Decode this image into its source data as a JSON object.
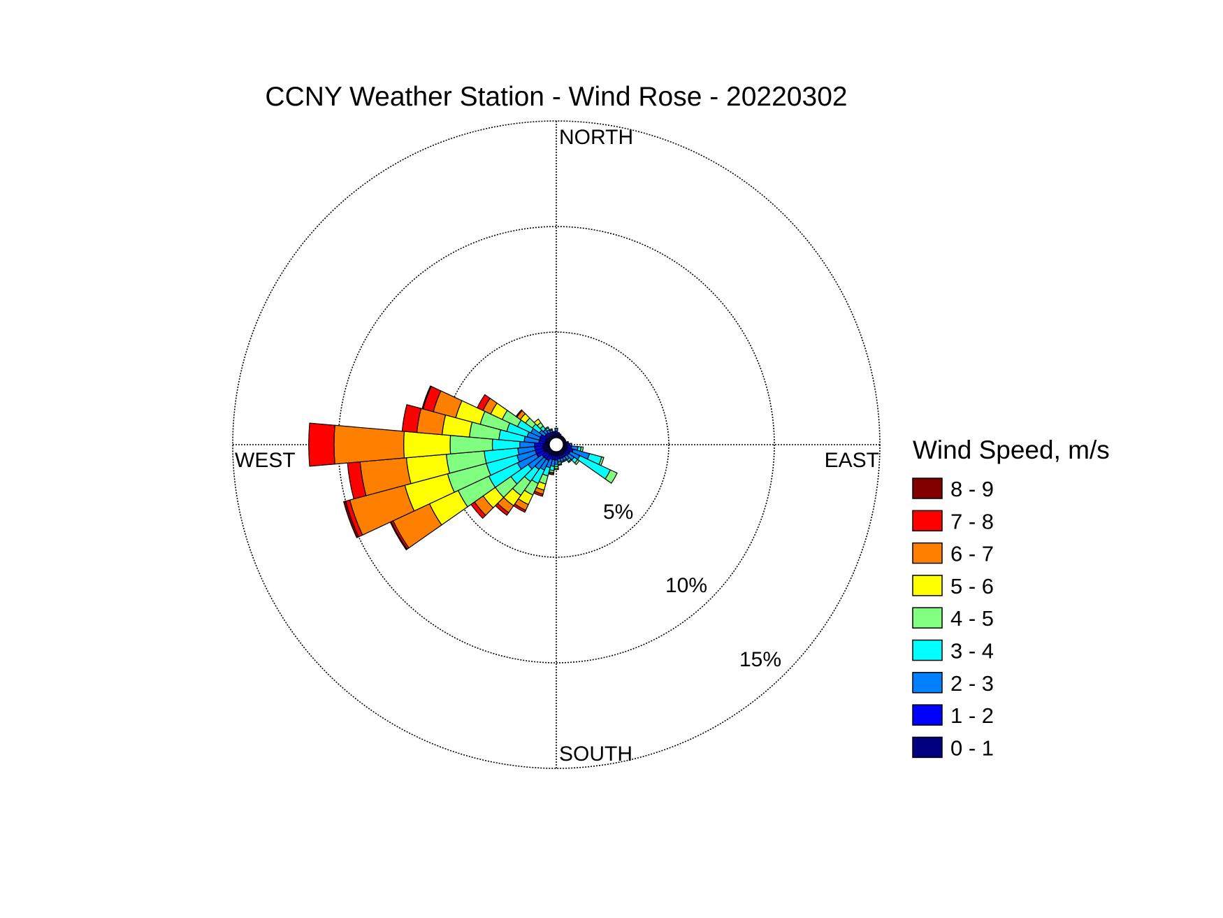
{
  "chart_data": {
    "type": "windrose",
    "title": "CCNY Weather Station - Wind Rose - 20220302",
    "direction_labels": {
      "north": "NORTH",
      "east": "EAST",
      "south": "SOUTH",
      "west": "WEST"
    },
    "ring_labels": [
      "5%",
      "10%",
      "15%"
    ],
    "rings_pct": [
      5,
      10,
      15
    ],
    "max_pct": 15,
    "grid": true,
    "legend": {
      "title": "Wind Speed, m/s",
      "placement": "right",
      "entries": [
        {
          "label": "8 - 9",
          "color": "#800000"
        },
        {
          "label": "7 - 8",
          "color": "#ff0000"
        },
        {
          "label": "6 - 7",
          "color": "#ff8000"
        },
        {
          "label": "5 - 6",
          "color": "#ffff00"
        },
        {
          "label": "4 - 5",
          "color": "#80ff80"
        },
        {
          "label": "3 - 4",
          "color": "#00ffff"
        },
        {
          "label": "2 - 3",
          "color": "#0080ff"
        },
        {
          "label": "1 - 2",
          "color": "#0000ff"
        },
        {
          "label": "0 - 1",
          "color": "#000080"
        }
      ]
    },
    "speed_bins": [
      "0 - 1",
      "1 - 2",
      "2 - 3",
      "3 - 4",
      "4 - 5",
      "5 - 6",
      "6 - 7",
      "7 - 8",
      "8 - 9"
    ],
    "bin_colors": [
      "#000080",
      "#0000ff",
      "#0080ff",
      "#00ffff",
      "#80ff80",
      "#ffff00",
      "#ff8000",
      "#ff0000",
      "#800000"
    ],
    "sector_width_deg": 10,
    "sectors": [
      {
        "direction_deg": 0,
        "values": [
          0.15,
          0.15,
          0.15,
          0,
          0,
          0,
          0,
          0,
          0
        ]
      },
      {
        "direction_deg": 10,
        "values": [
          0.15,
          0.1,
          0,
          0,
          0,
          0,
          0,
          0,
          0
        ]
      },
      {
        "direction_deg": 20,
        "values": [
          0.1,
          0.1,
          0,
          0,
          0,
          0,
          0,
          0,
          0
        ]
      },
      {
        "direction_deg": 30,
        "values": [
          0.1,
          0.05,
          0,
          0,
          0,
          0,
          0,
          0,
          0
        ]
      },
      {
        "direction_deg": 40,
        "values": [
          0.1,
          0.05,
          0,
          0,
          0,
          0,
          0,
          0,
          0
        ]
      },
      {
        "direction_deg": 50,
        "values": [
          0.1,
          0.05,
          0,
          0,
          0,
          0,
          0,
          0,
          0
        ]
      },
      {
        "direction_deg": 60,
        "values": [
          0.1,
          0.05,
          0,
          0,
          0,
          0,
          0,
          0,
          0
        ]
      },
      {
        "direction_deg": 70,
        "values": [
          0.1,
          0.05,
          0,
          0,
          0,
          0,
          0,
          0,
          0
        ]
      },
      {
        "direction_deg": 80,
        "values": [
          0.15,
          0.1,
          0,
          0,
          0,
          0,
          0,
          0,
          0
        ]
      },
      {
        "direction_deg": 90,
        "values": [
          0.15,
          0.15,
          0.1,
          0,
          0,
          0,
          0,
          0,
          0
        ]
      },
      {
        "direction_deg": 100,
        "values": [
          0.2,
          0.2,
          0.3,
          0.15,
          0.1,
          0,
          0,
          0,
          0
        ]
      },
      {
        "direction_deg": 110,
        "values": [
          0.2,
          0.3,
          0.8,
          0.6,
          0.1,
          0,
          0,
          0,
          0
        ]
      },
      {
        "direction_deg": 120,
        "values": [
          0.2,
          0.2,
          0.5,
          1.6,
          0.35,
          0,
          0,
          0,
          0
        ]
      },
      {
        "direction_deg": 130,
        "values": [
          0.2,
          0.2,
          0.3,
          0.2,
          0.1,
          0,
          0,
          0,
          0
        ]
      },
      {
        "direction_deg": 140,
        "values": [
          0.2,
          0.15,
          0.2,
          0.1,
          0.05,
          0,
          0,
          0,
          0
        ]
      },
      {
        "direction_deg": 150,
        "values": [
          0.2,
          0.15,
          0.15,
          0.05,
          0,
          0,
          0,
          0,
          0
        ]
      },
      {
        "direction_deg": 160,
        "values": [
          0.2,
          0.15,
          0.15,
          0.05,
          0,
          0,
          0,
          0,
          0
        ]
      },
      {
        "direction_deg": 170,
        "values": [
          0.2,
          0.15,
          0.15,
          0.1,
          0.05,
          0,
          0,
          0,
          0
        ]
      },
      {
        "direction_deg": 180,
        "values": [
          0.2,
          0.2,
          0.2,
          0.1,
          0.1,
          0.05,
          0,
          0,
          0
        ]
      },
      {
        "direction_deg": 190,
        "values": [
          0.2,
          0.2,
          0.3,
          0.2,
          0.1,
          0.05,
          0.05,
          0,
          0
        ]
      },
      {
        "direction_deg": 200,
        "values": [
          0.2,
          0.2,
          0.4,
          0.4,
          0.4,
          0.3,
          0.2,
          0.1,
          0
        ]
      },
      {
        "direction_deg": 210,
        "values": [
          0.2,
          0.3,
          0.5,
          0.7,
          0.6,
          0.5,
          0.3,
          0.1,
          0
        ]
      },
      {
        "direction_deg": 220,
        "values": [
          0.2,
          0.3,
          0.6,
          0.7,
          0.8,
          0.6,
          0.4,
          0.15,
          0
        ]
      },
      {
        "direction_deg": 230,
        "values": [
          0.2,
          0.3,
          0.8,
          1.0,
          0.9,
          0.7,
          0.5,
          0.2,
          0
        ]
      },
      {
        "direction_deg": 240,
        "values": [
          0.3,
          0.4,
          1.0,
          1.5,
          1.6,
          1.5,
          1.9,
          0.1,
          0.05
        ]
      },
      {
        "direction_deg": 250,
        "values": [
          0.3,
          0.4,
          0.9,
          1.5,
          1.9,
          2.1,
          2.7,
          0.2,
          0.1
        ]
      },
      {
        "direction_deg": 260,
        "values": [
          0.3,
          0.4,
          0.8,
          1.6,
          1.8,
          1.9,
          2.2,
          0.6,
          0
        ]
      },
      {
        "direction_deg": 270,
        "values": [
          0.3,
          0.4,
          0.7,
          1.3,
          2.0,
          2.2,
          3.3,
          1.2,
          0
        ]
      },
      {
        "direction_deg": 280,
        "values": [
          0.2,
          0.3,
          0.7,
          1.2,
          1.4,
          1.3,
          1.2,
          0.7,
          0
        ]
      },
      {
        "direction_deg": 290,
        "values": [
          0.2,
          0.3,
          0.6,
          1.0,
          1.3,
          1.2,
          1.1,
          0.5,
          0.05
        ]
      },
      {
        "direction_deg": 300,
        "values": [
          0.2,
          0.3,
          0.5,
          0.7,
          0.8,
          0.6,
          0.4,
          0.3,
          0
        ]
      },
      {
        "direction_deg": 310,
        "values": [
          0.15,
          0.2,
          0.3,
          0.4,
          0.4,
          0.3,
          0.2,
          0.05,
          0
        ]
      },
      {
        "direction_deg": 320,
        "values": [
          0.15,
          0.2,
          0.2,
          0.2,
          0.2,
          0.2,
          0,
          0,
          0
        ]
      },
      {
        "direction_deg": 330,
        "values": [
          0.15,
          0.15,
          0.15,
          0.1,
          0.05,
          0,
          0,
          0,
          0
        ]
      },
      {
        "direction_deg": 340,
        "values": [
          0.15,
          0.15,
          0.1,
          0.05,
          0,
          0,
          0,
          0,
          0
        ]
      },
      {
        "direction_deg": 350,
        "values": [
          0.15,
          0.1,
          0.05,
          0,
          0,
          0,
          0,
          0,
          0
        ]
      }
    ]
  }
}
